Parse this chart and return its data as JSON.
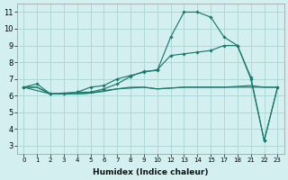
{
  "xlabel": "Humidex (Indice chaleur)",
  "bg_color": "#d4efef",
  "grid_color": "#aed8d8",
  "line_color": "#1a7a6e",
  "tick_labels": [
    "0",
    "1",
    "2",
    "3",
    "4",
    "5",
    "6",
    "7",
    "8",
    "9",
    "10",
    "12",
    "13",
    "14",
    "15",
    "17",
    "18",
    "21",
    "22",
    "23"
  ],
  "series": [
    {
      "xs": [
        0,
        1,
        2,
        3,
        4,
        5,
        6,
        7,
        8,
        9,
        10,
        11,
        12,
        13,
        14,
        15,
        16,
        17,
        18,
        19
      ],
      "ys": [
        6.5,
        6.7,
        6.1,
        6.1,
        6.2,
        6.2,
        6.4,
        6.7,
        7.15,
        7.45,
        7.5,
        9.5,
        11.0,
        11.0,
        10.7,
        9.5,
        9.0,
        7.1,
        3.3,
        6.5
      ],
      "marker": true
    },
    {
      "xs": [
        0,
        1,
        2,
        3,
        4,
        5,
        6,
        7,
        8,
        9,
        10,
        11,
        12,
        13,
        14,
        15,
        16,
        17,
        18,
        19
      ],
      "ys": [
        6.5,
        6.5,
        6.1,
        6.1,
        6.1,
        6.15,
        6.3,
        6.4,
        6.5,
        6.5,
        6.4,
        6.45,
        6.5,
        6.5,
        6.5,
        6.5,
        6.5,
        6.5,
        6.5,
        6.5
      ],
      "marker": false
    },
    {
      "xs": [
        0,
        2,
        4,
        5,
        6,
        7,
        8,
        9,
        10,
        11,
        12,
        13,
        14,
        15,
        16,
        17,
        18,
        19
      ],
      "ys": [
        6.5,
        6.1,
        6.2,
        6.5,
        6.6,
        7.0,
        7.2,
        7.4,
        7.55,
        8.4,
        8.5,
        8.6,
        8.7,
        9.0,
        9.0,
        7.0,
        3.3,
        6.5
      ],
      "marker": true
    },
    {
      "xs": [
        0,
        1,
        2,
        3,
        4,
        5,
        6,
        7,
        8,
        9,
        10,
        11,
        12,
        13,
        14,
        15,
        16,
        17,
        18,
        19
      ],
      "ys": [
        6.5,
        6.5,
        6.1,
        6.1,
        6.1,
        6.15,
        6.25,
        6.4,
        6.45,
        6.5,
        6.4,
        6.45,
        6.5,
        6.5,
        6.5,
        6.5,
        6.55,
        6.6,
        6.5,
        6.5
      ],
      "marker": false
    }
  ],
  "xlim": [
    -0.5,
    19.5
  ],
  "ylim": [
    2.5,
    11.5
  ],
  "yticks": [
    3,
    4,
    5,
    6,
    7,
    8,
    9,
    10,
    11
  ],
  "num_xticks": 20
}
